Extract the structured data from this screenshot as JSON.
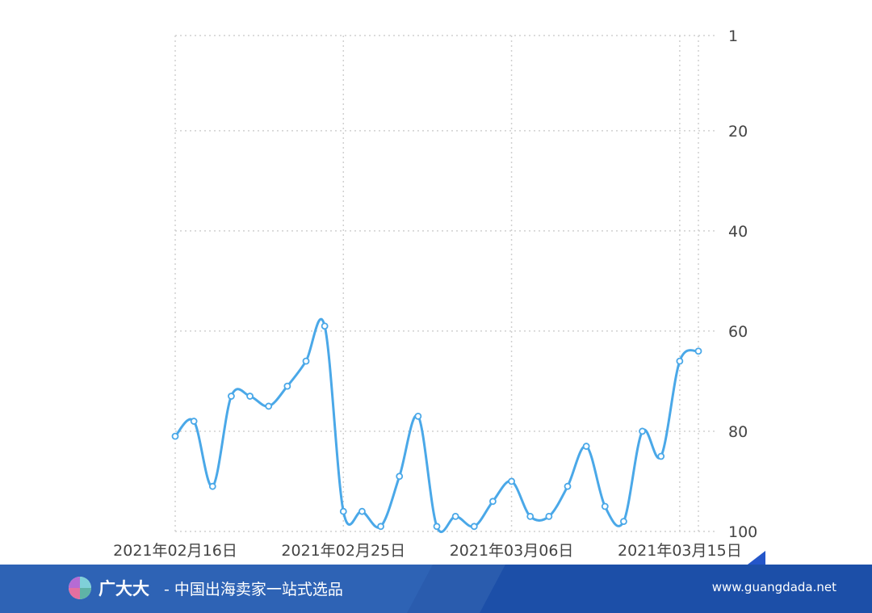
{
  "chart_data": {
    "type": "line",
    "x": [
      "2021-02-16",
      "2021-02-17",
      "2021-02-18",
      "2021-02-19",
      "2021-02-20",
      "2021-02-21",
      "2021-02-22",
      "2021-02-23",
      "2021-02-24",
      "2021-02-25",
      "2021-02-26",
      "2021-02-27",
      "2021-02-28",
      "2021-03-01",
      "2021-03-02",
      "2021-03-03",
      "2021-03-04",
      "2021-03-05",
      "2021-03-06",
      "2021-03-07",
      "2021-03-08",
      "2021-03-09",
      "2021-03-10",
      "2021-03-11",
      "2021-03-12",
      "2021-03-13",
      "2021-03-14",
      "2021-03-15",
      "2021-03-16"
    ],
    "values": [
      81,
      78,
      91,
      73,
      73,
      75,
      71,
      66,
      59,
      96,
      96,
      99,
      89,
      77,
      99,
      97,
      99,
      94,
      90,
      97,
      97,
      91,
      83,
      95,
      98,
      80,
      85,
      66,
      64
    ],
    "x_tick_labels": [
      "2021年02月16日",
      "2021年02月25日",
      "2021年03月06日",
      "2021年03月15日"
    ],
    "y_tick_labels": [
      "1",
      "20",
      "40",
      "60",
      "80",
      "100"
    ],
    "y_tick_values": [
      1,
      20,
      40,
      60,
      80,
      100
    ],
    "ylim": [
      1,
      100
    ],
    "y_inverted": true,
    "y_axis_position": "right",
    "grid": true,
    "grid_style": "dotted",
    "title": "",
    "xlabel": "",
    "ylabel": "",
    "line_color": "#4aa8e8"
  },
  "footer": {
    "brand_name": "广大大",
    "slogan": "- 中国出海卖家一站式选品",
    "url": "www.guangdada.net",
    "background_color": "#2e63b5",
    "logo_icon": "pie-chart-logo-icon"
  }
}
